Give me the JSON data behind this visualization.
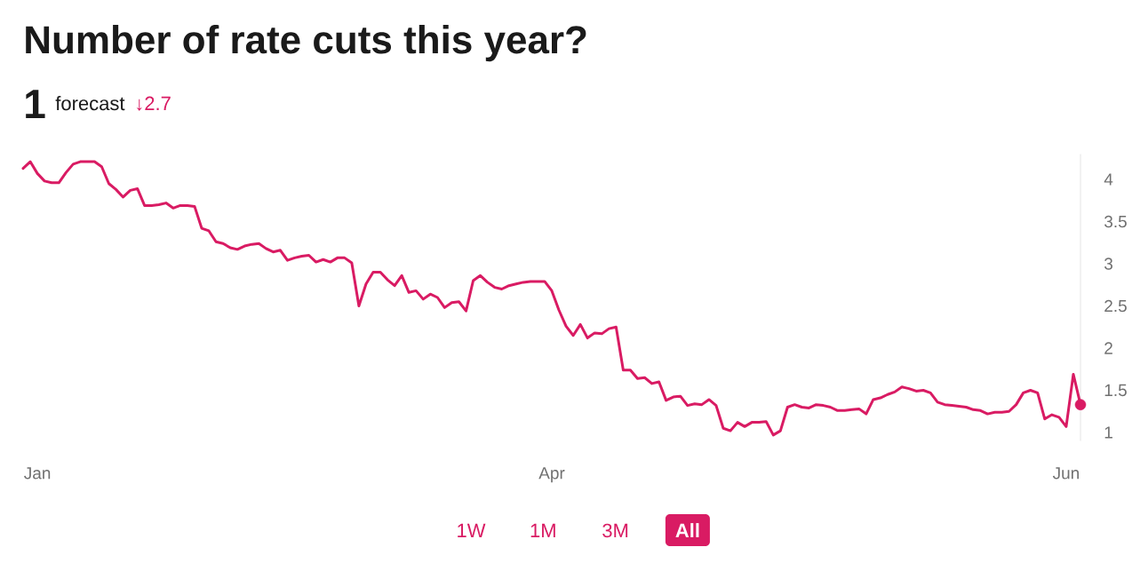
{
  "chart_data": {
    "type": "line",
    "title": "Number of rate cuts this year?",
    "annotations": [
      "1",
      "forecast",
      "↓2.7",
      "1W",
      "1M",
      "3M",
      "All"
    ],
    "categories": [
      null,
      null,
      "Jan",
      null,
      null,
      null,
      null,
      null,
      null,
      null,
      null,
      null,
      null,
      null,
      null,
      null,
      null,
      null,
      null,
      null,
      null,
      null,
      null,
      null,
      null,
      null,
      null,
      null,
      null,
      null,
      null,
      null,
      null,
      null,
      null,
      null,
      null,
      null,
      null,
      null,
      null,
      null,
      null,
      null,
      null,
      null,
      null,
      null,
      null,
      null,
      null,
      null,
      null,
      null,
      null,
      null,
      null,
      null,
      null,
      null,
      null,
      null,
      null,
      null,
      null,
      null,
      null,
      null,
      null,
      null,
      null,
      null,
      null,
      null,
      "Apr",
      null,
      null,
      null,
      null,
      null,
      null,
      null,
      null,
      null,
      null,
      null,
      null,
      null,
      null,
      null,
      null,
      null,
      null,
      null,
      null,
      null,
      null,
      null,
      null,
      null,
      null,
      null,
      null,
      null,
      null,
      null,
      null,
      null,
      null,
      null,
      null,
      null,
      null,
      null,
      null,
      null,
      null,
      null,
      null,
      null,
      null,
      null,
      null,
      null,
      null,
      null,
      null,
      null,
      null,
      null,
      null,
      null,
      null,
      null,
      null,
      null,
      null,
      null,
      null,
      null,
      null,
      null,
      null,
      null,
      null,
      null,
      "Jun",
      null,
      null
    ],
    "series": [
      {
        "color": "#d91b63",
        "line_style": "solid",
        "values": [
          4.13,
          4.21,
          4.07,
          3.98,
          3.96,
          3.96,
          4.08,
          4.18,
          4.21,
          4.21,
          4.21,
          4.15,
          3.95,
          3.88,
          3.79,
          3.87,
          3.89,
          3.69,
          3.69,
          3.7,
          3.72,
          3.66,
          3.69,
          3.69,
          3.68,
          3.42,
          3.39,
          3.26,
          3.24,
          3.19,
          3.17,
          3.21,
          3.23,
          3.24,
          3.18,
          3.14,
          3.16,
          3.04,
          3.07,
          3.09,
          3.1,
          3.02,
          3.05,
          3.02,
          3.07,
          3.07,
          3.01,
          2.5,
          2.76,
          2.9,
          2.9,
          2.81,
          2.74,
          2.86,
          2.66,
          2.68,
          2.58,
          2.64,
          2.6,
          2.48,
          2.54,
          2.55,
          2.44,
          2.8,
          2.86,
          2.78,
          2.72,
          2.7,
          2.74,
          2.76,
          2.78,
          2.79,
          2.79,
          2.79,
          2.68,
          2.45,
          2.26,
          2.15,
          2.28,
          2.12,
          2.18,
          2.17,
          2.23,
          2.25,
          1.74,
          1.74,
          1.64,
          1.65,
          1.58,
          1.6,
          1.38,
          1.42,
          1.43,
          1.32,
          1.34,
          1.33,
          1.39,
          1.32,
          1.05,
          1.02,
          1.12,
          1.07,
          1.12,
          1.12,
          1.13,
          0.97,
          1.02,
          1.3,
          1.33,
          1.3,
          1.29,
          1.33,
          1.32,
          1.3,
          1.26,
          1.26,
          1.27,
          1.28,
          1.22,
          1.39,
          1.41,
          1.45,
          1.48,
          1.54,
          1.52,
          1.49,
          1.5,
          1.47,
          1.36,
          1.33,
          1.32,
          1.31,
          1.3,
          1.27,
          1.26,
          1.22,
          1.24,
          1.24,
          1.25,
          1.33,
          1.47,
          1.5,
          1.47,
          1.16,
          1.21,
          1.18,
          1.07,
          1.69,
          1.33
        ]
      },
      {
        "type": "scatter",
        "color": "#d91b63",
        "marker": "circle",
        "values": [
          null,
          null,
          null,
          null,
          null,
          null,
          null,
          null,
          null,
          null,
          null,
          null,
          null,
          null,
          null,
          null,
          null,
          null,
          null,
          null,
          null,
          null,
          null,
          null,
          null,
          null,
          null,
          null,
          null,
          null,
          null,
          null,
          null,
          null,
          null,
          null,
          null,
          null,
          null,
          null,
          null,
          null,
          null,
          null,
          null,
          null,
          null,
          null,
          null,
          null,
          null,
          null,
          null,
          null,
          null,
          null,
          null,
          null,
          null,
          null,
          null,
          null,
          null,
          null,
          null,
          null,
          null,
          null,
          null,
          null,
          null,
          null,
          null,
          null,
          null,
          null,
          null,
          null,
          null,
          null,
          null,
          null,
          null,
          null,
          null,
          null,
          null,
          null,
          null,
          null,
          null,
          null,
          null,
          null,
          null,
          null,
          null,
          null,
          null,
          null,
          null,
          null,
          null,
          null,
          null,
          null,
          null,
          null,
          null,
          null,
          null,
          null,
          null,
          null,
          null,
          null,
          null,
          null,
          null,
          null,
          null,
          null,
          null,
          null,
          null,
          null,
          null,
          null,
          null,
          null,
          null,
          null,
          null,
          null,
          null,
          null,
          null,
          null,
          null,
          null,
          null,
          null,
          null,
          null,
          null,
          null,
          null,
          null,
          1.33
        ]
      }
    ],
    "ylim": [
      0.9,
      4.3
    ],
    "yticks": [
      1,
      1.5,
      2,
      2.5,
      3,
      3.5,
      4
    ]
  }
}
